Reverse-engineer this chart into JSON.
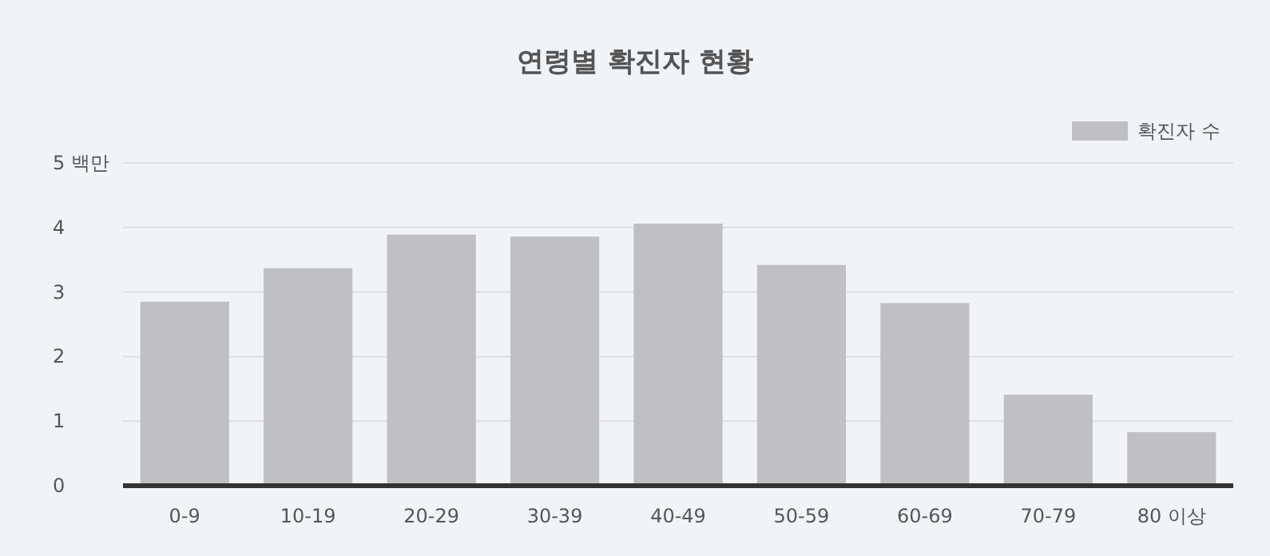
{
  "chart_data": {
    "type": "bar",
    "title": "연령별 확진자 현황",
    "categories": [
      "0-9",
      "10-19",
      "20-29",
      "30-39",
      "40-49",
      "50-59",
      "60-69",
      "70-79",
      "80 이상"
    ],
    "series": [
      {
        "name": "확진자 수",
        "color": "#c0bfc1",
        "values": [
          2.85,
          3.37,
          3.89,
          3.86,
          4.06,
          3.42,
          2.83,
          1.41,
          0.83
        ]
      }
    ],
    "ylim": [
      0,
      5
    ],
    "yticks": [
      0,
      1,
      2,
      3,
      4,
      {
        "value": 5,
        "label": "5 백만"
      }
    ],
    "grid": "y",
    "legend": "top right"
  }
}
